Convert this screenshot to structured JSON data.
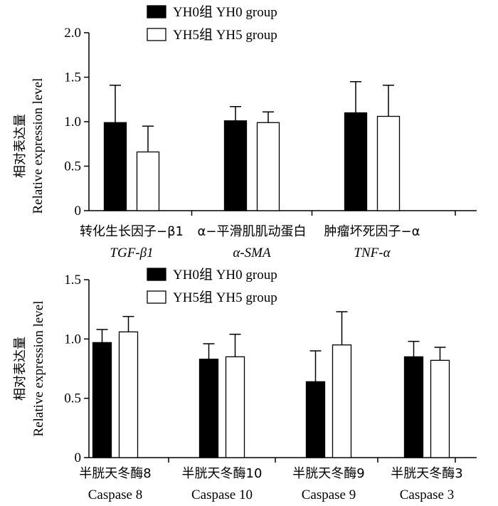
{
  "chart_data": [
    {
      "type": "bar",
      "ylabel_cn": "相对表达量",
      "ylabel_en": "Relative expression level",
      "ylim": [
        0,
        2.0
      ],
      "yticks": [
        "0",
        "0.5",
        "1.0",
        "1.5",
        "2.0"
      ],
      "ytick_values": [
        0,
        0.5,
        1.0,
        1.5,
        2.0
      ],
      "legend": [
        {
          "label": "YH0组 YH0 group",
          "color": "#000000"
        },
        {
          "label": "YH5组 YH5 group",
          "color": "#ffffff"
        }
      ],
      "categories": [
        {
          "cn": "转化生长因子−β1",
          "en": "TGF-β1",
          "italic": true
        },
        {
          "cn": "α−平滑肌肌动蛋白",
          "en": "α-SMA",
          "italic": true
        },
        {
          "cn": "肿瘤坏死因子−α",
          "en": "TNF-α",
          "italic": true
        }
      ],
      "series": [
        {
          "name": "YH0组 YH0 group",
          "values": [
            0.99,
            1.01,
            1.1
          ],
          "errors": [
            0.42,
            0.16,
            0.35
          ]
        },
        {
          "name": "YH5组 YH5 group",
          "values": [
            0.66,
            0.99,
            1.06
          ],
          "errors": [
            0.29,
            0.12,
            0.35
          ]
        }
      ]
    },
    {
      "type": "bar",
      "ylabel_cn": "相对表达量",
      "ylabel_en": "Relative expression level",
      "ylim": [
        0,
        1.5
      ],
      "yticks": [
        "0",
        "0.5",
        "1.0",
        "1.5"
      ],
      "ytick_values": [
        0,
        0.5,
        1.0,
        1.5
      ],
      "legend": [
        {
          "label": "YH0组 YH0 group",
          "color": "#000000"
        },
        {
          "label": "YH5组 YH5 group",
          "color": "#ffffff"
        }
      ],
      "categories": [
        {
          "cn": "半胱天冬酶8",
          "en": "Caspase 8",
          "italic": false
        },
        {
          "cn": "半胱天冬酶10",
          "en": "Caspase 10",
          "italic": false
        },
        {
          "cn": "半胱天冬酶9",
          "en": "Caspase 9",
          "italic": false
        },
        {
          "cn": "半胱天冬酶3",
          "en": "Caspase 3",
          "italic": false
        }
      ],
      "series": [
        {
          "name": "YH0组 YH0 group",
          "values": [
            0.97,
            0.83,
            0.64,
            0.85
          ],
          "errors": [
            0.11,
            0.13,
            0.26,
            0.13
          ]
        },
        {
          "name": "YH5组 YH5 group",
          "values": [
            1.06,
            0.85,
            0.95,
            0.82
          ],
          "errors": [
            0.13,
            0.19,
            0.28,
            0.11
          ]
        }
      ]
    }
  ]
}
